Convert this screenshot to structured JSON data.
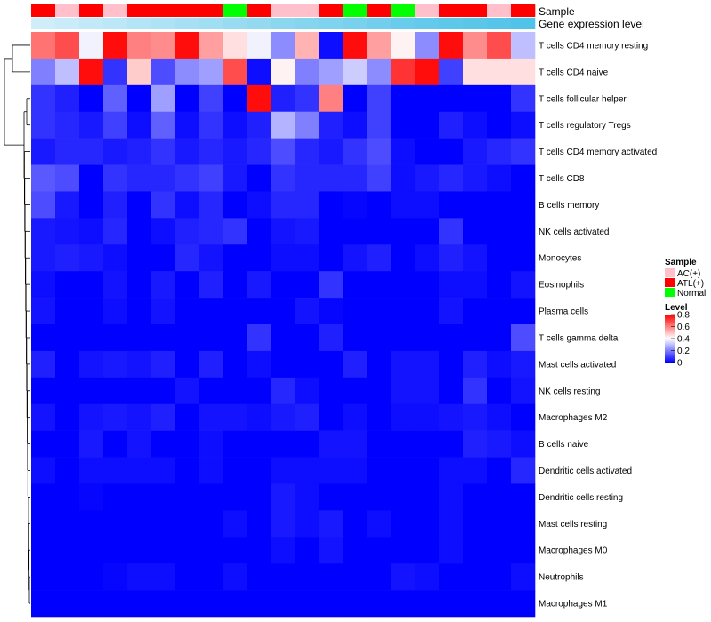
{
  "chart_data": {
    "type": "heatmap",
    "title": "",
    "annotation_rows": [
      {
        "label": "Sample",
        "kind": "category"
      },
      {
        "label": "Gene expression level",
        "kind": "gradient"
      }
    ],
    "sample_groups": [
      "ATL(+)",
      "AC(+)",
      "ATL(+)",
      "AC(+)",
      "ATL(+)",
      "ATL(+)",
      "ATL(+)",
      "ATL(+)",
      "Normal",
      "ATL(+)",
      "AC(+)",
      "AC(+)",
      "ATL(+)",
      "Normal",
      "ATL(+)",
      "Normal",
      "AC(+)",
      "ATL(+)",
      "ATL(+)",
      "AC(+)",
      "ATL(+)"
    ],
    "expression_level_gradient": [
      0.05,
      0.1,
      0.15,
      0.2,
      0.25,
      0.3,
      0.35,
      0.4,
      0.45,
      0.5,
      0.55,
      0.6,
      0.65,
      0.7,
      0.75,
      0.8,
      0.85,
      0.9,
      0.92,
      0.95,
      1.0
    ],
    "rows": [
      "T cells CD4 memory resting",
      "T cells CD4 naive",
      "T cells follicular helper",
      "T cells regulatory  Tregs",
      "T cells CD4 memory activated",
      "T cells CD8",
      "B cells memory",
      "NK cells activated",
      "Monocytes",
      "Eosinophils",
      "Plasma cells",
      "T cells gamma delta",
      "Mast cells activated",
      "NK cells resting",
      "Macrophages M2",
      "B cells naive",
      "Dendritic cells activated",
      "Dendritic cells resting",
      "Mast cells resting",
      "Macrophages M0",
      "Neutrophils",
      "Macrophages M1"
    ],
    "values": [
      [
        0.62,
        0.68,
        0.38,
        0.78,
        0.6,
        0.58,
        0.78,
        0.55,
        0.45,
        0.38,
        0.22,
        0.52,
        0.02,
        0.78,
        0.55,
        0.42,
        0.22,
        0.78,
        0.58,
        0.68,
        0.3
      ],
      [
        0.2,
        0.3,
        0.78,
        0.08,
        0.48,
        0.12,
        0.22,
        0.25,
        0.68,
        0.02,
        0.42,
        0.2,
        0.25,
        0.32,
        0.22,
        0.72,
        0.78,
        0.1,
        0.45,
        0.45,
        0.45
      ],
      [
        0.08,
        0.05,
        0.0,
        0.15,
        0.0,
        0.25,
        0.0,
        0.1,
        0.0,
        0.78,
        0.05,
        0.08,
        0.6,
        0.0,
        0.1,
        0.0,
        0.0,
        0.0,
        0.0,
        0.0,
        0.08
      ],
      [
        0.08,
        0.06,
        0.04,
        0.1,
        0.02,
        0.15,
        0.02,
        0.08,
        0.02,
        0.05,
        0.28,
        0.2,
        0.05,
        0.02,
        0.1,
        0.0,
        0.0,
        0.05,
        0.02,
        0.0,
        0.02
      ],
      [
        0.04,
        0.06,
        0.06,
        0.04,
        0.05,
        0.08,
        0.04,
        0.06,
        0.04,
        0.06,
        0.12,
        0.06,
        0.04,
        0.08,
        0.12,
        0.02,
        0.0,
        0.0,
        0.04,
        0.06,
        0.08
      ],
      [
        0.14,
        0.12,
        0.0,
        0.08,
        0.06,
        0.06,
        0.08,
        0.1,
        0.04,
        0.0,
        0.08,
        0.06,
        0.06,
        0.06,
        0.1,
        0.02,
        0.04,
        0.06,
        0.04,
        0.02,
        0.0
      ],
      [
        0.12,
        0.04,
        0.0,
        0.05,
        0.0,
        0.08,
        0.02,
        0.06,
        0.0,
        0.02,
        0.06,
        0.06,
        0.0,
        0.01,
        0.0,
        0.02,
        0.02,
        0.0,
        0.0,
        0.0,
        0.0
      ],
      [
        0.04,
        0.03,
        0.02,
        0.06,
        0.0,
        0.02,
        0.05,
        0.06,
        0.08,
        0.0,
        0.03,
        0.04,
        0.0,
        0.0,
        0.0,
        0.0,
        0.0,
        0.08,
        0.0,
        0.0,
        0.0
      ],
      [
        0.04,
        0.05,
        0.04,
        0.02,
        0.0,
        0.0,
        0.06,
        0.03,
        0.0,
        0.0,
        0.02,
        0.02,
        0.0,
        0.03,
        0.05,
        0.0,
        0.02,
        0.05,
        0.03,
        0.0,
        0.0
      ],
      [
        0.02,
        0.0,
        0.0,
        0.03,
        0.0,
        0.04,
        0.0,
        0.05,
        0.0,
        0.04,
        0.0,
        0.0,
        0.08,
        0.0,
        0.0,
        0.0,
        0.0,
        0.02,
        0.02,
        0.0,
        0.03
      ],
      [
        0.03,
        0.0,
        0.0,
        0.02,
        0.0,
        0.03,
        0.0,
        0.0,
        0.0,
        0.0,
        0.0,
        0.03,
        0.01,
        0.0,
        0.0,
        0.0,
        0.0,
        0.03,
        0.0,
        0.0,
        0.0
      ],
      [
        0.0,
        0.0,
        0.0,
        0.0,
        0.0,
        0.0,
        0.0,
        0.0,
        0.0,
        0.08,
        0.0,
        0.0,
        0.05,
        0.0,
        0.0,
        0.0,
        0.0,
        0.0,
        0.0,
        0.0,
        0.12
      ],
      [
        0.05,
        0.0,
        0.03,
        0.04,
        0.03,
        0.05,
        0.0,
        0.05,
        0.0,
        0.02,
        0.0,
        0.0,
        0.0,
        0.05,
        0.0,
        0.03,
        0.03,
        0.0,
        0.05,
        0.02,
        0.04
      ],
      [
        0.0,
        0.0,
        0.0,
        0.0,
        0.0,
        0.0,
        0.03,
        0.0,
        0.0,
        0.0,
        0.06,
        0.02,
        0.0,
        0.0,
        0.0,
        0.03,
        0.03,
        0.0,
        0.08,
        0.0,
        0.03
      ],
      [
        0.03,
        0.0,
        0.03,
        0.04,
        0.03,
        0.05,
        0.0,
        0.03,
        0.03,
        0.02,
        0.04,
        0.05,
        0.0,
        0.02,
        0.0,
        0.02,
        0.02,
        0.03,
        0.04,
        0.02,
        0.0
      ],
      [
        0.0,
        0.0,
        0.04,
        0.0,
        0.03,
        0.0,
        0.0,
        0.02,
        0.0,
        0.0,
        0.0,
        0.0,
        0.03,
        0.03,
        0.0,
        0.0,
        0.0,
        0.0,
        0.05,
        0.04,
        0.02
      ],
      [
        0.02,
        0.0,
        0.02,
        0.02,
        0.02,
        0.02,
        0.0,
        0.02,
        0.0,
        0.0,
        0.02,
        0.02,
        0.02,
        0.02,
        0.0,
        0.0,
        0.0,
        0.02,
        0.02,
        0.0,
        0.06
      ],
      [
        0.0,
        0.0,
        0.01,
        0.0,
        0.0,
        0.0,
        0.0,
        0.0,
        0.0,
        0.0,
        0.04,
        0.02,
        0.0,
        0.0,
        0.0,
        0.0,
        0.0,
        0.02,
        0.0,
        0.0,
        0.0
      ],
      [
        0.0,
        0.0,
        0.0,
        0.0,
        0.0,
        0.0,
        0.0,
        0.0,
        0.02,
        0.0,
        0.04,
        0.02,
        0.04,
        0.0,
        0.02,
        0.0,
        0.0,
        0.02,
        0.0,
        0.0,
        0.0
      ],
      [
        0.0,
        0.0,
        0.0,
        0.0,
        0.0,
        0.0,
        0.0,
        0.0,
        0.0,
        0.0,
        0.02,
        0.0,
        0.03,
        0.0,
        0.0,
        0.0,
        0.0,
        0.02,
        0.0,
        0.0,
        0.0
      ],
      [
        0.0,
        0.0,
        0.0,
        0.01,
        0.02,
        0.02,
        0.0,
        0.0,
        0.02,
        0.0,
        0.0,
        0.0,
        0.0,
        0.0,
        0.0,
        0.03,
        0.02,
        0.0,
        0.0,
        0.0,
        0.02
      ],
      [
        0.0,
        0.0,
        0.0,
        0.0,
        0.0,
        0.0,
        0.0,
        0.0,
        0.0,
        0.0,
        0.0,
        0.0,
        0.0,
        0.0,
        0.0,
        0.0,
        0.0,
        0.0,
        0.0,
        0.0,
        0.0
      ]
    ],
    "legend": {
      "sample_title": "Sample",
      "sample_entries": [
        {
          "label": "AC(+)",
          "color": "#ffc0cb"
        },
        {
          "label": "ATL(+)",
          "color": "#ff0000"
        },
        {
          "label": "Normal",
          "color": "#00ff00"
        }
      ],
      "level_title": "Level",
      "level_ticks": [
        "0.8",
        "0.6",
        "0.4",
        "0.2",
        "0"
      ],
      "level_tick_values": [
        0.8,
        0.6,
        0.4,
        0.2,
        0
      ],
      "level_range": [
        0,
        0.8
      ],
      "placement": "right"
    },
    "colors": {
      "low": "#0000ff",
      "mid": "#ffffff",
      "high": "#ff0000",
      "expr_light": "#d6f0fa",
      "expr_dark": "#4fc3e8"
    }
  }
}
